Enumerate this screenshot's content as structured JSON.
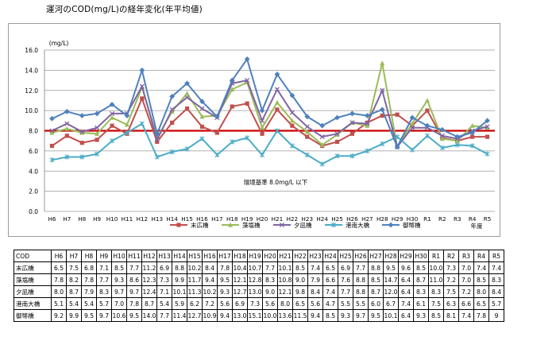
{
  "page": {
    "title": "運河のCOD(mg/L)の経年変化(年平均値)"
  },
  "chart_data": {
    "type": "line",
    "title": "",
    "ylabel": "(mg/L)",
    "xlabel": "年度",
    "ylim": [
      0.0,
      16.0
    ],
    "yticks": [
      "0.0",
      "2.0",
      "4.0",
      "6.0",
      "8.0",
      "10.0",
      "12.0",
      "14.0",
      "16.0"
    ],
    "grid": "horizontal",
    "legend_position": "bottom",
    "categories": [
      "H6",
      "H7",
      "H8",
      "H9",
      "H10",
      "H11",
      "H12",
      "H13",
      "H14",
      "H15",
      "H16",
      "H17",
      "H18",
      "H19",
      "H20",
      "H21",
      "H22",
      "H23",
      "H24",
      "H25",
      "H26",
      "H27",
      "H28",
      "H29",
      "H30",
      "R1",
      "R2",
      "R3",
      "R4",
      "R5"
    ],
    "series": [
      {
        "name": "末広橋",
        "color": "#c0504d",
        "marker": "square",
        "values": [
          6.5,
          7.5,
          6.8,
          7.1,
          8.5,
          7.7,
          11.2,
          6.9,
          8.8,
          10.2,
          8.4,
          7.8,
          10.4,
          10.7,
          7.7,
          10.1,
          8.5,
          7.4,
          6.5,
          6.9,
          7.7,
          8.8,
          9.5,
          9.6,
          8.5,
          10.0,
          7.3,
          7.0,
          7.4,
          7.4
        ]
      },
      {
        "name": "藻塩橋",
        "color": "#9bbb59",
        "marker": "triangle",
        "values": [
          7.8,
          8.2,
          7.8,
          7.7,
          9.3,
          8.6,
          12.3,
          7.3,
          9.9,
          11.7,
          9.4,
          9.5,
          12.1,
          12.8,
          8.3,
          10.8,
          9.0,
          7.9,
          6.6,
          7.6,
          8.8,
          8.5,
          14.7,
          6.4,
          8.7,
          11.0,
          7.2,
          7.0,
          8.5,
          8.3
        ]
      },
      {
        "name": "夕凪橋",
        "color": "#8064a2",
        "marker": "x",
        "values": [
          8.0,
          8.7,
          7.9,
          8.3,
          9.7,
          9.7,
          12.4,
          7.1,
          10.1,
          11.3,
          10.2,
          9.3,
          12.7,
          13.0,
          9.0,
          12.1,
          9.8,
          8.4,
          7.4,
          7.7,
          8.8,
          8.7,
          12.0,
          6.4,
          8.3,
          8.3,
          7.5,
          7.2,
          8.0,
          8.4
        ]
      },
      {
        "name": "港南大橋",
        "color": "#4bacc6",
        "marker": "star",
        "values": [
          5.1,
          5.4,
          5.4,
          5.7,
          7.0,
          7.8,
          8.7,
          5.4,
          5.9,
          6.2,
          7.2,
          5.6,
          6.9,
          7.3,
          5.6,
          8.0,
          6.5,
          5.6,
          4.7,
          5.5,
          5.5,
          6.0,
          6.7,
          7.4,
          6.1,
          7.5,
          6.3,
          6.6,
          6.5,
          5.7
        ]
      },
      {
        "name": "御幣橋",
        "color": "#4f81bd",
        "marker": "diamond",
        "values": [
          9.2,
          9.9,
          9.5,
          9.7,
          10.6,
          9.5,
          14.0,
          7.7,
          11.4,
          12.7,
          10.9,
          9.4,
          13.0,
          15.1,
          10.0,
          13.6,
          11.5,
          9.4,
          8.5,
          9.3,
          9.7,
          9.5,
          10.1,
          6.4,
          9.3,
          8.5,
          8.1,
          7.4,
          7.8,
          9.0
        ]
      }
    ],
    "reference_line": {
      "label": "環境基準 8.0mg/L 以下",
      "value": 8.0,
      "color": "#cc0000"
    }
  },
  "table": {
    "header_label": "COD",
    "columns": [
      "H6",
      "H7",
      "H8",
      "H9",
      "H10",
      "H11",
      "H12",
      "H13",
      "H14",
      "H15",
      "H16",
      "H17",
      "H18",
      "H19",
      "H20",
      "H21",
      "H22",
      "H23",
      "H24",
      "H25",
      "H26",
      "H27",
      "H28",
      "H29",
      "H30",
      "R1",
      "R2",
      "R3",
      "R4",
      "R5"
    ],
    "rows": [
      {
        "label": "末広橋",
        "cells": [
          "6.5",
          "7.5",
          "6.8",
          "7.1",
          "8.5",
          "7.7",
          "11.2",
          "6.9",
          "8.8",
          "10.2",
          "8.4",
          "7.8",
          "10.4",
          "10.7",
          "7.7",
          "10.1",
          "8.5",
          "7.4",
          "6.5",
          "6.9",
          "7.7",
          "8.8",
          "9.5",
          "9.6",
          "8.5",
          "10.0",
          "7.3",
          "7.0",
          "7.4",
          "7.4"
        ]
      },
      {
        "label": "藻塩橋",
        "cells": [
          "7.8",
          "8.2",
          "7.8",
          "7.7",
          "9.3",
          "8.6",
          "12.3",
          "7.3",
          "9.9",
          "11.7",
          "9.4",
          "9.5",
          "12.1",
          "12.8",
          "8.3",
          "10.8",
          "9.0",
          "7.9",
          "6.6",
          "7.6",
          "8.8",
          "8.5",
          "14.7",
          "6.4",
          "8.7",
          "11.0",
          "7.2",
          "7.0",
          "8.5",
          "8.3"
        ]
      },
      {
        "label": "夕凪橋",
        "cells": [
          "8.0",
          "8.7",
          "7.9",
          "8.3",
          "9.7",
          "9.7",
          "12.4",
          "7.1",
          "10.1",
          "11.3",
          "10.2",
          "9.3",
          "12.7",
          "13.0",
          "9.0",
          "12.1",
          "9.8",
          "8.4",
          "7.4",
          "7.7",
          "8.8",
          "8.7",
          "12.0",
          "6.4",
          "8.3",
          "8.3",
          "7.5",
          "7.2",
          "8.0",
          "8.4"
        ]
      },
      {
        "label": "港南大橋",
        "cells": [
          "5.1",
          "5.4",
          "5.4",
          "5.7",
          "7.0",
          "7.8",
          "8.7",
          "5.4",
          "5.9",
          "6.2",
          "7.2",
          "5.6",
          "6.9",
          "7.3",
          "5.6",
          "8.0",
          "6.5",
          "5.6",
          "4.7",
          "5.5",
          "5.5",
          "6.0",
          "6.7",
          "7.4",
          "6.1",
          "7.5",
          "6.3",
          "6.6",
          "6.5",
          "5.7"
        ]
      },
      {
        "label": "御幣橋",
        "cells": [
          "9.2",
          "9.9",
          "9.5",
          "9.7",
          "10.6",
          "9.5",
          "14.0",
          "7.7",
          "11.4",
          "12.7",
          "10.9",
          "9.4",
          "13.0",
          "15.1",
          "10.0",
          "13.6",
          "11.5",
          "9.4",
          "8.5",
          "9.3",
          "9.7",
          "9.5",
          "10.1",
          "6.4",
          "9.3",
          "8.5",
          "8.1",
          "7.4",
          "7.8",
          "9"
        ]
      }
    ]
  }
}
